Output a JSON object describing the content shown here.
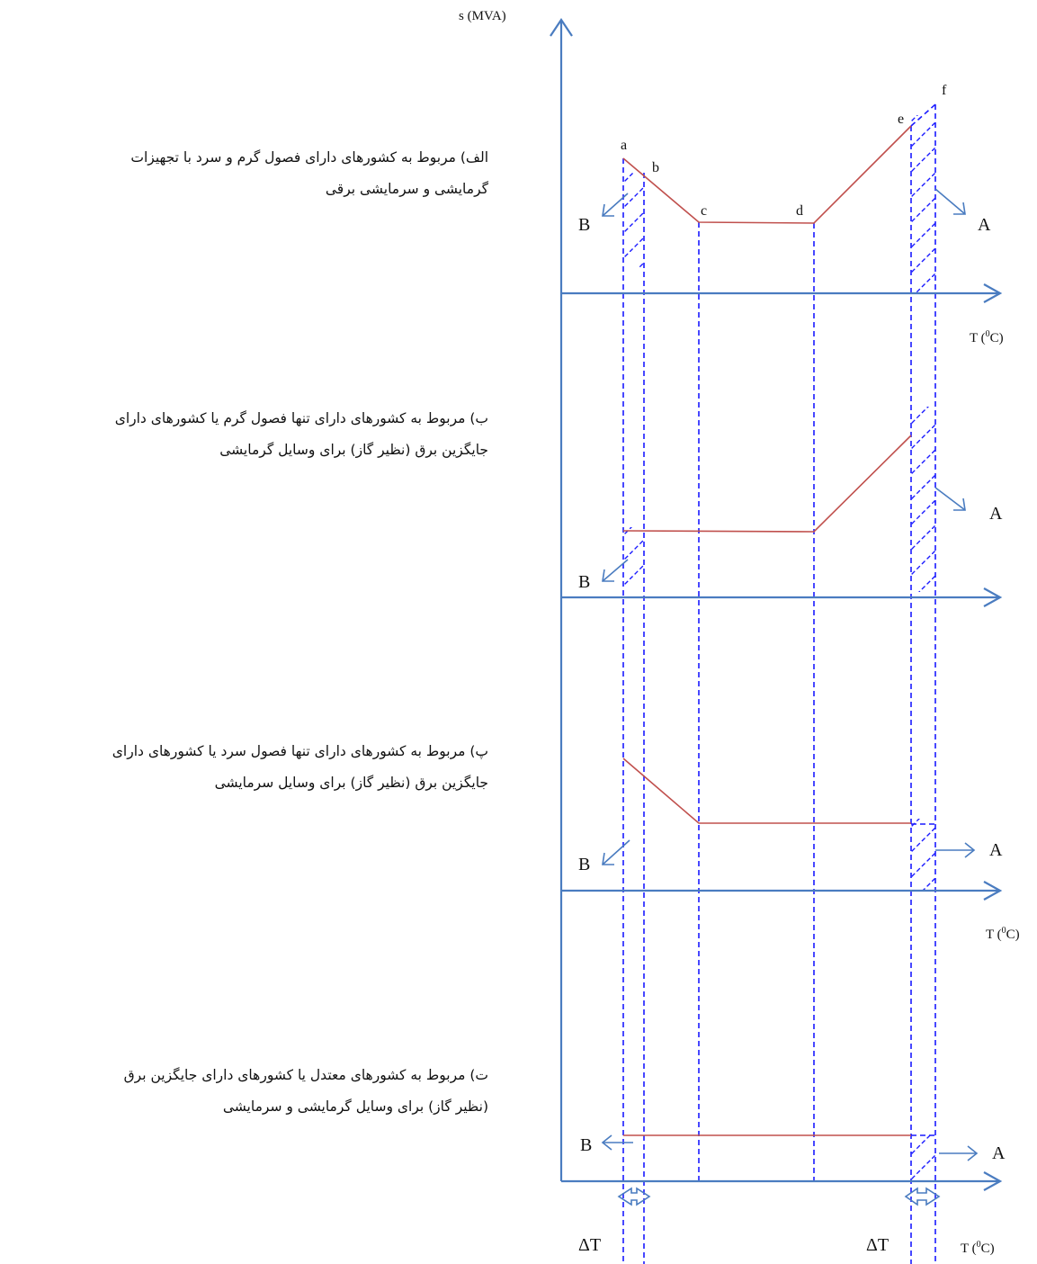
{
  "y_axis_label": "s (MVA)",
  "x_axis_label": "T (",
  "x_axis_label_sup": "0",
  "x_axis_label_end": "C)",
  "point_labels": [
    "a",
    "b",
    "c",
    "d",
    "e",
    "f"
  ],
  "region_labels": {
    "A": "A",
    "B": "B"
  },
  "delta_label": "ΔT",
  "captions": [
    {
      "line1": "الف) مربوط به کشورهای دارای فصول گرم و سرد با تجهیزات",
      "line2": "گرمایشی و سرمایشی برقی"
    },
    {
      "line1": "ب) مربوط به کشورهای دارای تنها فصول گرم یا کشورهای دارای",
      "line2": "جایگزین برق (نظیر گاز) برای وسایل گرمایشی"
    },
    {
      "line1": "پ) مربوط به کشورهای دارای تنها فصول سرد یا کشورهای دارای",
      "line2": "جایگزین برق (نظیر گاز) برای وسایل سرمایشی"
    },
    {
      "line1": "ت) مربوط به کشورهای معتدل یا کشورهای دارای جایگزین برق",
      "line2": "(نظیر گاز) برای وسایل گرمایشی و سرمایشی"
    }
  ],
  "colors": {
    "axis": "#4a7cc0",
    "curve": "#c0504d",
    "dash": "#1a1aff",
    "text": "#111111"
  }
}
